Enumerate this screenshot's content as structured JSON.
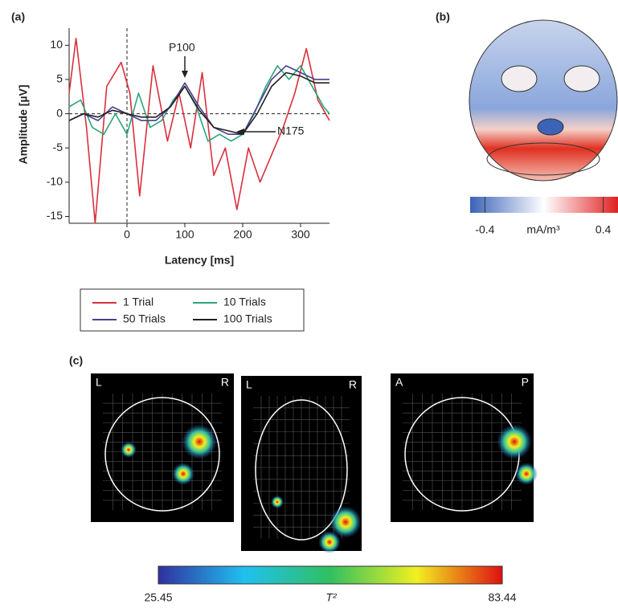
{
  "chart_data": {
    "type": "line",
    "panel": "(a)",
    "xlabel": "Latency [ms]",
    "ylabel": "Amplitude [µV]",
    "xlim": [
      -100,
      350
    ],
    "ylim": [
      -16,
      12.5
    ],
    "xticks": [
      0,
      100,
      200,
      300
    ],
    "yticks": [
      -15,
      -10,
      -5,
      0,
      5,
      10
    ],
    "annotations": [
      "P100",
      "N175"
    ],
    "series": [
      {
        "name": "1 Trial",
        "color": "#d8303d",
        "x": [
          -100,
          -88,
          -70,
          -55,
          -35,
          -10,
          5,
          22,
          45,
          70,
          90,
          110,
          130,
          150,
          170,
          190,
          210,
          230,
          250,
          270,
          290,
          310,
          330,
          350
        ],
        "values": [
          3,
          11,
          -2,
          -16,
          4,
          7.5,
          3,
          -12,
          7,
          -4,
          3,
          -5,
          6,
          -9,
          -5,
          -14,
          -5,
          -10,
          -6,
          -2,
          3,
          9.5,
          2,
          -1
        ]
      },
      {
        "name": "10 Trials",
        "color": "#2aa57a",
        "x": [
          -100,
          -80,
          -60,
          -40,
          -20,
          0,
          20,
          40,
          60,
          80,
          100,
          120,
          140,
          160,
          180,
          200,
          220,
          240,
          260,
          280,
          300,
          320,
          340,
          350
        ],
        "values": [
          1,
          2,
          -2,
          -3,
          0,
          -3,
          3,
          -2,
          -1,
          2,
          4,
          1,
          -4,
          -3,
          -4,
          -3,
          0,
          4,
          7,
          5,
          7,
          4,
          1,
          0
        ]
      },
      {
        "name": "50 Trials",
        "color": "#4b3d8f",
        "x": [
          -100,
          -75,
          -50,
          -25,
          0,
          25,
          50,
          75,
          100,
          125,
          150,
          175,
          200,
          225,
          250,
          275,
          300,
          325,
          350
        ],
        "values": [
          -1,
          0,
          -1,
          1,
          0,
          -1,
          -1,
          1,
          4.5,
          1,
          -2,
          -3,
          -3,
          1,
          5,
          7,
          6,
          5,
          5
        ]
      },
      {
        "name": "100 Trials",
        "color": "#222222",
        "x": [
          -100,
          -75,
          -50,
          -25,
          0,
          25,
          50,
          75,
          100,
          125,
          150,
          175,
          200,
          225,
          250,
          275,
          300,
          325,
          350
        ],
        "values": [
          -1,
          0,
          -0.5,
          0.5,
          0,
          -0.5,
          -0.5,
          1,
          4,
          0.5,
          -2,
          -2.5,
          -3,
          0,
          4,
          6,
          5.5,
          4.5,
          4.5
        ]
      }
    ]
  },
  "panel_b": {
    "label": "(b)",
    "colorbar_ticks": [
      -0.4,
      0.4
    ],
    "unit": "mA/m³"
  },
  "panel_c": {
    "label": "(c)",
    "views": [
      {
        "left": "L",
        "right": "R"
      },
      {
        "left": "L",
        "right": "R"
      },
      {
        "left": "A",
        "right": "P"
      }
    ],
    "colorbar_min": 25.45,
    "colorbar_max": 83.44,
    "colorbar_label": "T²"
  }
}
